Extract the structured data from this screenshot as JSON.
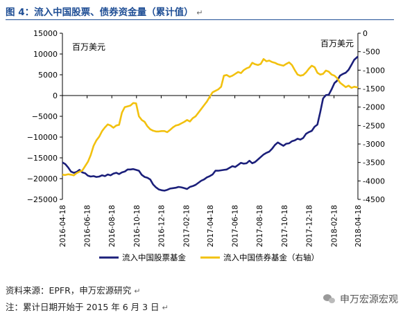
{
  "figure": {
    "title": "图 4：流入中国股票、债券资金量（累计值）",
    "source": "资料来源：EPFR，申万宏源研究",
    "note": "注：累计日期开始于 2015 年 6 月 3 日",
    "watermark": "申万宏源宏观",
    "watermark_icon": "wechat-icon"
  },
  "chart_data": {
    "type": "line",
    "left_axis": {
      "unit_label": "百万美元",
      "ylim": [
        -25000,
        15000
      ],
      "ticks": [
        15000,
        10000,
        5000,
        0,
        -5000,
        -10000,
        -15000,
        -20000,
        -25000
      ],
      "tick_labels": [
        "15000",
        "10000",
        "5000",
        "0",
        "−5000",
        "−10000",
        "−15000",
        "−20000",
        "−25000"
      ]
    },
    "right_axis": {
      "unit_label": "百万美元",
      "ylim": [
        -4500,
        0
      ],
      "ticks": [
        0,
        -500,
        -1000,
        -1500,
        -2000,
        -2500,
        -3000,
        -3500,
        -4000,
        -4500
      ],
      "tick_labels": [
        "0",
        "-500",
        "-1000",
        "-1500",
        "-2000",
        "-2500",
        "-3000",
        "-3500",
        "-4000",
        "-4500"
      ]
    },
    "x_axis": {
      "ticks": [
        "2016-04-18",
        "2016-06-18",
        "2016-08-18",
        "2016-10-18",
        "2016-12-18",
        "2017-02-18",
        "2017-04-18",
        "2017-06-18",
        "2017-08-18",
        "2017-10-18",
        "2017-12-18",
        "2018-02-18",
        "2018-04-18"
      ]
    },
    "legend_position": "bottom",
    "grid": false,
    "series": [
      {
        "name": "流入中国股票基金",
        "axis": "left",
        "color": "#1b1f7a",
        "points": [
          [
            "2016-04-18",
            -16100
          ],
          [
            "2016-04-25",
            -16500
          ],
          [
            "2016-05-02",
            -17300
          ],
          [
            "2016-05-09",
            -18300
          ],
          [
            "2016-05-16",
            -18600
          ],
          [
            "2016-05-23",
            -18400
          ],
          [
            "2016-05-30",
            -17900
          ],
          [
            "2016-06-06",
            -18500
          ],
          [
            "2016-06-13",
            -18700
          ],
          [
            "2016-06-20",
            -19300
          ],
          [
            "2016-06-27",
            -19500
          ],
          [
            "2016-07-04",
            -19400
          ],
          [
            "2016-07-11",
            -19600
          ],
          [
            "2016-07-18",
            -19500
          ],
          [
            "2016-07-25",
            -19200
          ],
          [
            "2016-08-01",
            -19400
          ],
          [
            "2016-08-08",
            -19000
          ],
          [
            "2016-08-15",
            -19200
          ],
          [
            "2016-08-22",
            -18800
          ],
          [
            "2016-08-29",
            -18600
          ],
          [
            "2016-09-05",
            -18900
          ],
          [
            "2016-09-12",
            -18500
          ],
          [
            "2016-09-19",
            -18300
          ],
          [
            "2016-09-26",
            -17800
          ],
          [
            "2016-10-03",
            -17800
          ],
          [
            "2016-10-10",
            -17700
          ],
          [
            "2016-10-17",
            -17900
          ],
          [
            "2016-10-24",
            -18100
          ],
          [
            "2016-10-31",
            -19100
          ],
          [
            "2016-11-07",
            -19600
          ],
          [
            "2016-11-14",
            -19800
          ],
          [
            "2016-11-21",
            -20200
          ],
          [
            "2016-11-28",
            -21400
          ],
          [
            "2016-12-05",
            -22100
          ],
          [
            "2016-12-12",
            -22600
          ],
          [
            "2016-12-19",
            -22800
          ],
          [
            "2016-12-26",
            -22900
          ],
          [
            "2017-01-02",
            -22700
          ],
          [
            "2017-01-09",
            -22400
          ],
          [
            "2017-01-16",
            -22300
          ],
          [
            "2017-01-23",
            -22200
          ],
          [
            "2017-01-30",
            -22000
          ],
          [
            "2017-02-06",
            -22100
          ],
          [
            "2017-02-13",
            -22300
          ],
          [
            "2017-02-20",
            -22500
          ],
          [
            "2017-02-27",
            -22000
          ],
          [
            "2017-03-06",
            -21800
          ],
          [
            "2017-03-13",
            -21500
          ],
          [
            "2017-03-20",
            -21000
          ],
          [
            "2017-03-27",
            -20500
          ],
          [
            "2017-04-03",
            -20200
          ],
          [
            "2017-04-10",
            -19700
          ],
          [
            "2017-04-17",
            -19400
          ],
          [
            "2017-04-24",
            -19000
          ],
          [
            "2017-05-01",
            -18100
          ],
          [
            "2017-05-08",
            -18100
          ],
          [
            "2017-05-15",
            -18000
          ],
          [
            "2017-05-22",
            -17900
          ],
          [
            "2017-05-29",
            -17800
          ],
          [
            "2017-06-05",
            -17400
          ],
          [
            "2017-06-12",
            -17000
          ],
          [
            "2017-06-19",
            -17200
          ],
          [
            "2017-06-26",
            -16700
          ],
          [
            "2017-07-03",
            -16200
          ],
          [
            "2017-07-10",
            -16400
          ],
          [
            "2017-07-17",
            -16300
          ],
          [
            "2017-07-24",
            -15700
          ],
          [
            "2017-07-31",
            -16300
          ],
          [
            "2017-08-07",
            -16000
          ],
          [
            "2017-08-14",
            -15400
          ],
          [
            "2017-08-21",
            -14800
          ],
          [
            "2017-08-28",
            -14200
          ],
          [
            "2017-09-04",
            -13800
          ],
          [
            "2017-09-11",
            -13500
          ],
          [
            "2017-09-18",
            -12800
          ],
          [
            "2017-09-25",
            -11900
          ],
          [
            "2017-10-02",
            -11300
          ],
          [
            "2017-10-09",
            -11700
          ],
          [
            "2017-10-16",
            -12100
          ],
          [
            "2017-10-23",
            -11600
          ],
          [
            "2017-10-30",
            -11500
          ],
          [
            "2017-11-06",
            -11000
          ],
          [
            "2017-11-13",
            -10800
          ],
          [
            "2017-11-20",
            -10400
          ],
          [
            "2017-11-27",
            -10600
          ],
          [
            "2017-12-04",
            -10200
          ],
          [
            "2017-12-11",
            -9200
          ],
          [
            "2017-12-18",
            -8800
          ],
          [
            "2017-12-25",
            -8500
          ],
          [
            "2018-01-01",
            -7500
          ],
          [
            "2018-01-08",
            -7000
          ],
          [
            "2018-01-15",
            -4000
          ],
          [
            "2018-01-22",
            -700
          ],
          [
            "2018-01-29",
            100
          ],
          [
            "2018-02-05",
            200
          ],
          [
            "2018-02-12",
            1500
          ],
          [
            "2018-02-19",
            3000
          ],
          [
            "2018-02-26",
            3600
          ],
          [
            "2018-03-05",
            4800
          ],
          [
            "2018-03-12",
            5200
          ],
          [
            "2018-03-19",
            5500
          ],
          [
            "2018-03-26",
            6200
          ],
          [
            "2018-04-02",
            7400
          ],
          [
            "2018-04-09",
            8600
          ],
          [
            "2018-04-18",
            9400
          ]
        ]
      },
      {
        "name": "流入中国债券基金（右轴）",
        "axis": "right",
        "color": "#f2c10f",
        "points": [
          [
            "2016-04-18",
            -3830
          ],
          [
            "2016-04-25",
            -3840
          ],
          [
            "2016-05-02",
            -3820
          ],
          [
            "2016-05-09",
            -3830
          ],
          [
            "2016-05-16",
            -3850
          ],
          [
            "2016-05-23",
            -3790
          ],
          [
            "2016-05-30",
            -3750
          ],
          [
            "2016-06-06",
            -3720
          ],
          [
            "2016-06-13",
            -3600
          ],
          [
            "2016-06-20",
            -3480
          ],
          [
            "2016-06-27",
            -3300
          ],
          [
            "2016-07-04",
            -3050
          ],
          [
            "2016-07-11",
            -2900
          ],
          [
            "2016-07-18",
            -2800
          ],
          [
            "2016-07-25",
            -2650
          ],
          [
            "2016-08-01",
            -2550
          ],
          [
            "2016-08-08",
            -2470
          ],
          [
            "2016-08-15",
            -2500
          ],
          [
            "2016-08-22",
            -2560
          ],
          [
            "2016-08-29",
            -2500
          ],
          [
            "2016-09-05",
            -2480
          ],
          [
            "2016-09-12",
            -2150
          ],
          [
            "2016-09-19",
            -2000
          ],
          [
            "2016-09-26",
            -1980
          ],
          [
            "2016-10-03",
            -1960
          ],
          [
            "2016-10-10",
            -1890
          ],
          [
            "2016-10-17",
            -1900
          ],
          [
            "2016-10-24",
            -2250
          ],
          [
            "2016-10-31",
            -2350
          ],
          [
            "2016-11-07",
            -2400
          ],
          [
            "2016-11-14",
            -2520
          ],
          [
            "2016-11-21",
            -2600
          ],
          [
            "2016-11-28",
            -2640
          ],
          [
            "2016-12-05",
            -2660
          ],
          [
            "2016-12-12",
            -2660
          ],
          [
            "2016-12-19",
            -2650
          ],
          [
            "2016-12-26",
            -2650
          ],
          [
            "2017-01-02",
            -2680
          ],
          [
            "2017-01-09",
            -2620
          ],
          [
            "2017-01-16",
            -2550
          ],
          [
            "2017-01-23",
            -2500
          ],
          [
            "2017-01-30",
            -2480
          ],
          [
            "2017-02-06",
            -2440
          ],
          [
            "2017-02-13",
            -2400
          ],
          [
            "2017-02-20",
            -2350
          ],
          [
            "2017-02-27",
            -2390
          ],
          [
            "2017-03-06",
            -2300
          ],
          [
            "2017-03-13",
            -2250
          ],
          [
            "2017-03-20",
            -2150
          ],
          [
            "2017-03-27",
            -2050
          ],
          [
            "2017-04-03",
            -1950
          ],
          [
            "2017-04-10",
            -1850
          ],
          [
            "2017-04-17",
            -1720
          ],
          [
            "2017-04-24",
            -1600
          ],
          [
            "2017-05-01",
            -1560
          ],
          [
            "2017-05-08",
            -1520
          ],
          [
            "2017-05-15",
            -1450
          ],
          [
            "2017-05-22",
            -1150
          ],
          [
            "2017-05-29",
            -1130
          ],
          [
            "2017-06-05",
            -1180
          ],
          [
            "2017-06-12",
            -1150
          ],
          [
            "2017-06-19",
            -1100
          ],
          [
            "2017-06-26",
            -1050
          ],
          [
            "2017-07-03",
            -1080
          ],
          [
            "2017-07-10",
            -1000
          ],
          [
            "2017-07-17",
            -950
          ],
          [
            "2017-07-24",
            -920
          ],
          [
            "2017-07-31",
            -800
          ],
          [
            "2017-08-07",
            -840
          ],
          [
            "2017-08-14",
            -860
          ],
          [
            "2017-08-21",
            -830
          ],
          [
            "2017-08-28",
            -700
          ],
          [
            "2017-09-04",
            -760
          ],
          [
            "2017-09-11",
            -740
          ],
          [
            "2017-09-18",
            -780
          ],
          [
            "2017-09-25",
            -800
          ],
          [
            "2017-10-02",
            -840
          ],
          [
            "2017-10-09",
            -860
          ],
          [
            "2017-10-16",
            -880
          ],
          [
            "2017-10-23",
            -830
          ],
          [
            "2017-10-30",
            -790
          ],
          [
            "2017-11-06",
            -860
          ],
          [
            "2017-11-13",
            -1000
          ],
          [
            "2017-11-20",
            -1120
          ],
          [
            "2017-11-27",
            -1150
          ],
          [
            "2017-12-04",
            -1130
          ],
          [
            "2017-12-11",
            -1060
          ],
          [
            "2017-12-18",
            -960
          ],
          [
            "2017-12-25",
            -880
          ],
          [
            "2018-01-01",
            -920
          ],
          [
            "2018-01-08",
            -1070
          ],
          [
            "2018-01-15",
            -1120
          ],
          [
            "2018-01-22",
            -1100
          ],
          [
            "2018-01-29",
            -1010
          ],
          [
            "2018-02-05",
            -1040
          ],
          [
            "2018-02-12",
            -1120
          ],
          [
            "2018-02-19",
            -1150
          ],
          [
            "2018-02-26",
            -1220
          ],
          [
            "2018-03-05",
            -1340
          ],
          [
            "2018-03-12",
            -1400
          ],
          [
            "2018-03-19",
            -1460
          ],
          [
            "2018-03-26",
            -1420
          ],
          [
            "2018-04-02",
            -1480
          ],
          [
            "2018-04-09",
            -1450
          ],
          [
            "2018-04-18",
            -1470
          ]
        ]
      }
    ]
  }
}
